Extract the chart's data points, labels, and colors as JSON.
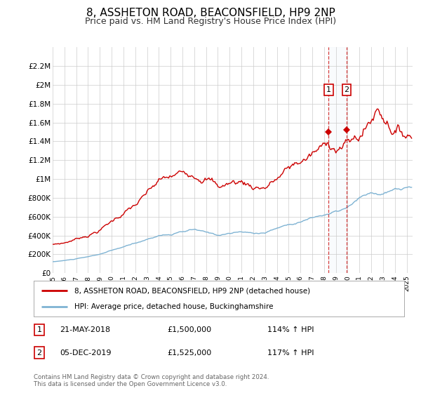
{
  "title": "8, ASSHETON ROAD, BEACONSFIELD, HP9 2NP",
  "subtitle": "Price paid vs. HM Land Registry's House Price Index (HPI)",
  "title_fontsize": 11,
  "subtitle_fontsize": 9,
  "background_color": "#ffffff",
  "grid_color": "#cccccc",
  "ylim": [
    0,
    2400000
  ],
  "yticks": [
    0,
    200000,
    400000,
    600000,
    800000,
    1000000,
    1200000,
    1400000,
    1600000,
    1800000,
    2000000,
    2200000
  ],
  "ytick_labels": [
    "£0",
    "£200K",
    "£400K",
    "£600K",
    "£800K",
    "£1M",
    "£1.2M",
    "£1.4M",
    "£1.6M",
    "£1.8M",
    "£2M",
    "£2.2M"
  ],
  "red_line_color": "#cc0000",
  "blue_line_color": "#7fb3d3",
  "sale1_date": 2018.38,
  "sale1_price": 1500000,
  "sale2_date": 2019.92,
  "sale2_price": 1525000,
  "sale1_label": "1",
  "sale2_label": "2",
  "sale1_date_str": "21-MAY-2018",
  "sale2_date_str": "05-DEC-2019",
  "sale1_price_str": "£1,500,000",
  "sale2_price_str": "£1,525,000",
  "sale1_pct": "114% ↑ HPI",
  "sale2_pct": "117% ↑ HPI",
  "legend_label_red": "8, ASSHETON ROAD, BEACONSFIELD, HP9 2NP (detached house)",
  "legend_label_blue": "HPI: Average price, detached house, Buckinghamshire",
  "footer1": "Contains HM Land Registry data © Crown copyright and database right 2024.",
  "footer2": "This data is licensed under the Open Government Licence v3.0."
}
